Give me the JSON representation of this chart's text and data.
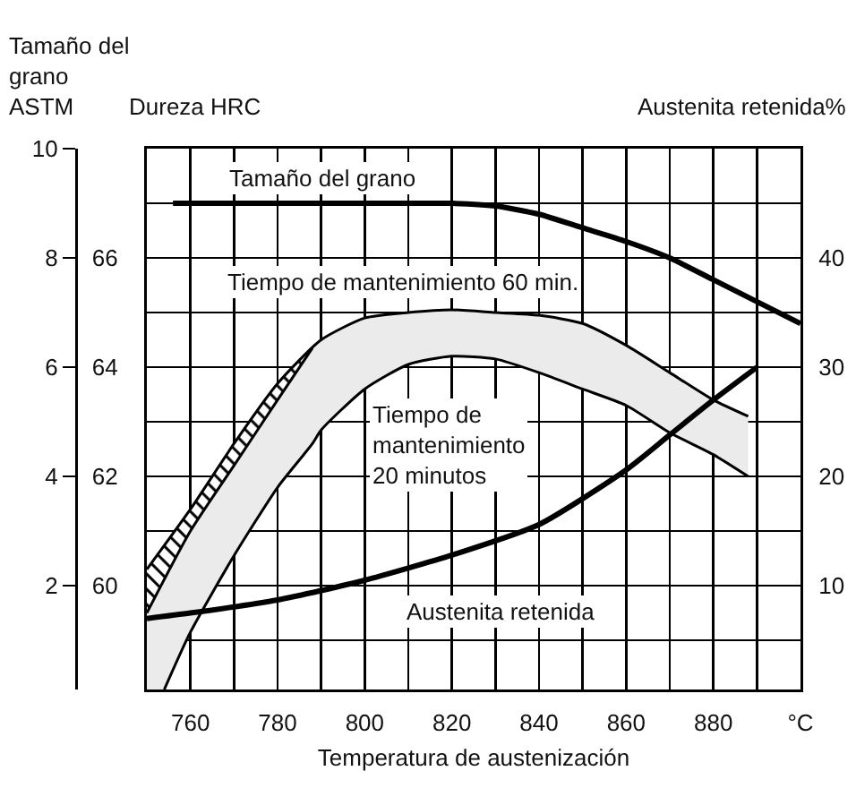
{
  "chart_data": {
    "type": "line",
    "xlabel": "Temperatura de austenización",
    "ylabel": "Tamaño del\ngrano\nASTM",
    "y2label": "Dureza HRC",
    "y3label": "Austenita retenida%",
    "xlim": [
      750,
      900
    ],
    "xticks": [
      760,
      {
        "value": 770,
        "label": null
      },
      780,
      {
        "value": 790,
        "label": null
      },
      800,
      {
        "value": 810,
        "label": null
      },
      820,
      {
        "value": 830,
        "label": null
      },
      840,
      {
        "value": 850,
        "label": null
      },
      860,
      {
        "value": 870,
        "label": null
      },
      880,
      {
        "value": 890,
        "label": null
      },
      {
        "value": 900,
        "label": "°C"
      }
    ],
    "ylim": [
      0.1,
      10
    ],
    "yticks": [
      2,
      4,
      6,
      8,
      10
    ],
    "y2lim": [
      58.1,
      68
    ],
    "y2ticks": [
      {
        "value": 59,
        "label": null
      },
      60,
      {
        "value": 61,
        "label": null
      },
      62,
      {
        "value": 63,
        "label": null
      },
      64,
      {
        "value": 65,
        "label": null
      },
      66,
      {
        "value": 67,
        "label": null
      }
    ],
    "y3lim": [
      0.5,
      50
    ],
    "y3ticks": [
      10,
      20,
      30,
      40
    ],
    "grid": true,
    "series": [
      {
        "color": "#000000",
        "x": [
          756,
          770,
          780,
          790,
          800,
          810,
          820,
          830,
          840,
          850,
          860,
          870,
          880,
          890,
          900
        ],
        "values": [
          9.0,
          9.0,
          9.0,
          9.0,
          9.0,
          9.0,
          9.0,
          8.95,
          8.8,
          8.55,
          8.3,
          8.0,
          7.6,
          7.2,
          6.8
        ]
      },
      {
        "color": "#000000",
        "axis": "y3",
        "x": [
          750,
          760,
          780,
          800,
          820,
          840,
          860,
          870,
          880,
          890
        ],
        "values": [
          7.0,
          7.5,
          8.7,
          10.5,
          12.8,
          15.6,
          20.6,
          23.8,
          27.0,
          30.0
        ]
      },
      {
        "color": "#000000",
        "axis": "y2",
        "x": [
          750,
          760,
          770,
          780,
          790,
          800,
          810,
          820,
          830,
          840,
          850,
          860,
          870,
          880,
          888
        ],
        "values": [
          60.3,
          61.4,
          62.6,
          63.7,
          64.5,
          64.9,
          65.0,
          65.05,
          65.0,
          64.95,
          64.8,
          64.4,
          63.9,
          63.4,
          63.1
        ]
      },
      {
        "color": "#000000",
        "axis": "y2",
        "x": [
          750,
          760,
          770,
          780,
          788
        ],
        "values": [
          59.5,
          61.0,
          62.2,
          63.4,
          64.35
        ],
        "lower": [
          59.5,
          61.0,
          62.2,
          63.4,
          64.35
        ],
        "upper": [
          60.3,
          61.4,
          62.6,
          63.7,
          64.35
        ]
      },
      {
        "color": "#000000",
        "axis": "y2",
        "x": [
          750,
          754,
          760,
          770,
          780,
          788,
          790,
          800,
          810,
          820,
          830,
          840,
          850,
          860,
          870,
          880,
          888
        ],
        "values": [
          null,
          58.1,
          59.15,
          60.55,
          61.8,
          62.6,
          62.85,
          63.6,
          64.05,
          64.2,
          64.15,
          63.9,
          63.6,
          63.3,
          62.8,
          62.4,
          62.0
        ],
        "lower": [
          58.1,
          58.1,
          59.15,
          60.55,
          61.8,
          62.6,
          62.85,
          63.6,
          64.05,
          64.2,
          64.15,
          63.9,
          63.6,
          63.3,
          62.8,
          62.4,
          62.0
        ],
        "upper": [
          59.5,
          60.1,
          61.0,
          62.2,
          63.4,
          64.35,
          64.5,
          64.9,
          65.0,
          65.05,
          65.0,
          64.95,
          64.8,
          64.4,
          63.9,
          63.4,
          63.1
        ]
      }
    ],
    "annotations": [
      "Tamaño del grano",
      "Tiempo de mantenimiento 60 min.",
      "Tiempo de\nmantenimiento\n20 minutos",
      "Austenita retenida"
    ]
  }
}
